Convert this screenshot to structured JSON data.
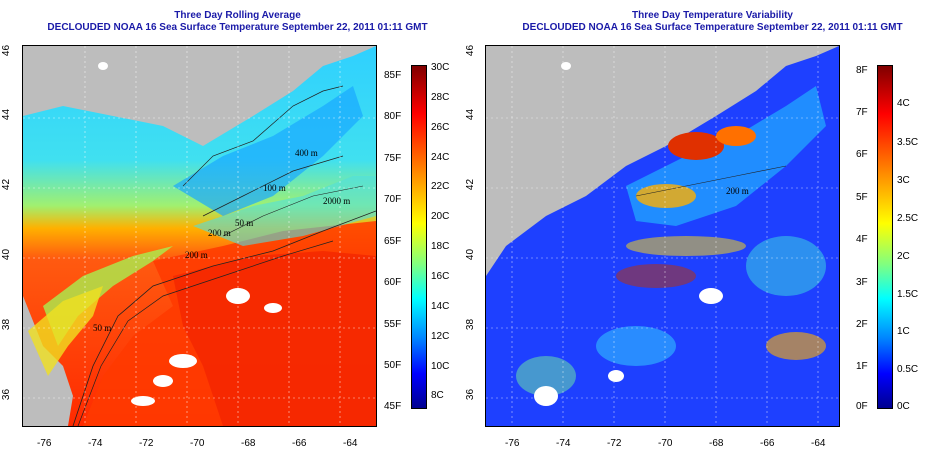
{
  "left_panel": {
    "title_line1": "Three Day Rolling Average",
    "title_line2": "DECLOUDED NOAA 16 Sea Surface Temperature September 22, 2011 01:11 GMT",
    "lon_ticks": [
      "-76",
      "-74",
      "-72",
      "-70",
      "-68",
      "-66",
      "-64"
    ],
    "lat_ticks": [
      "36",
      "38",
      "40",
      "42",
      "44",
      "46"
    ],
    "isobaths": [
      "200 m",
      "2000 m",
      "100 m",
      "400 m",
      "50 m",
      "200 m",
      "50 m"
    ],
    "colorbar": {
      "celsius": [
        "30C",
        "28C",
        "26C",
        "24C",
        "22C",
        "20C",
        "18C",
        "16C",
        "14C",
        "12C",
        "10C",
        "8C"
      ],
      "fahrenheit": [
        "85F",
        "80F",
        "75F",
        "70F",
        "65F",
        "60F",
        "55F",
        "50F",
        "45F"
      ],
      "colors": [
        "#00008f",
        "#0000ff",
        "#0080ff",
        "#00ffff",
        "#80ff80",
        "#ffff00",
        "#ff8000",
        "#ff0000",
        "#800000"
      ]
    }
  },
  "right_panel": {
    "title_line1": "Three Day Temperature Variability",
    "title_line2": "DECLOUDED NOAA 16 Sea Surface Temperature September 22, 2011 01:11 GMT",
    "lon_ticks": [
      "-76",
      "-74",
      "-72",
      "-70",
      "-68",
      "-66",
      "-64"
    ],
    "lat_ticks": [
      "36",
      "38",
      "40",
      "42",
      "44",
      "46"
    ],
    "isobaths": [
      "200 m"
    ],
    "colorbar": {
      "celsius": [
        "4C",
        "3.5C",
        "3C",
        "2.5C",
        "2C",
        "1.5C",
        "1C",
        "0.5C",
        "0C"
      ],
      "fahrenheit": [
        "8F",
        "7F",
        "6F",
        "5F",
        "4F",
        "3F",
        "2F",
        "1F",
        "0F"
      ],
      "colors": [
        "#00008f",
        "#0000ff",
        "#0080ff",
        "#00ffff",
        "#80ff80",
        "#ffff00",
        "#ff8000",
        "#ff0000",
        "#800000"
      ]
    }
  },
  "colors": {
    "title": "#1a1aa8",
    "land": "#bdbdbd",
    "cloud": "#ffffff"
  }
}
